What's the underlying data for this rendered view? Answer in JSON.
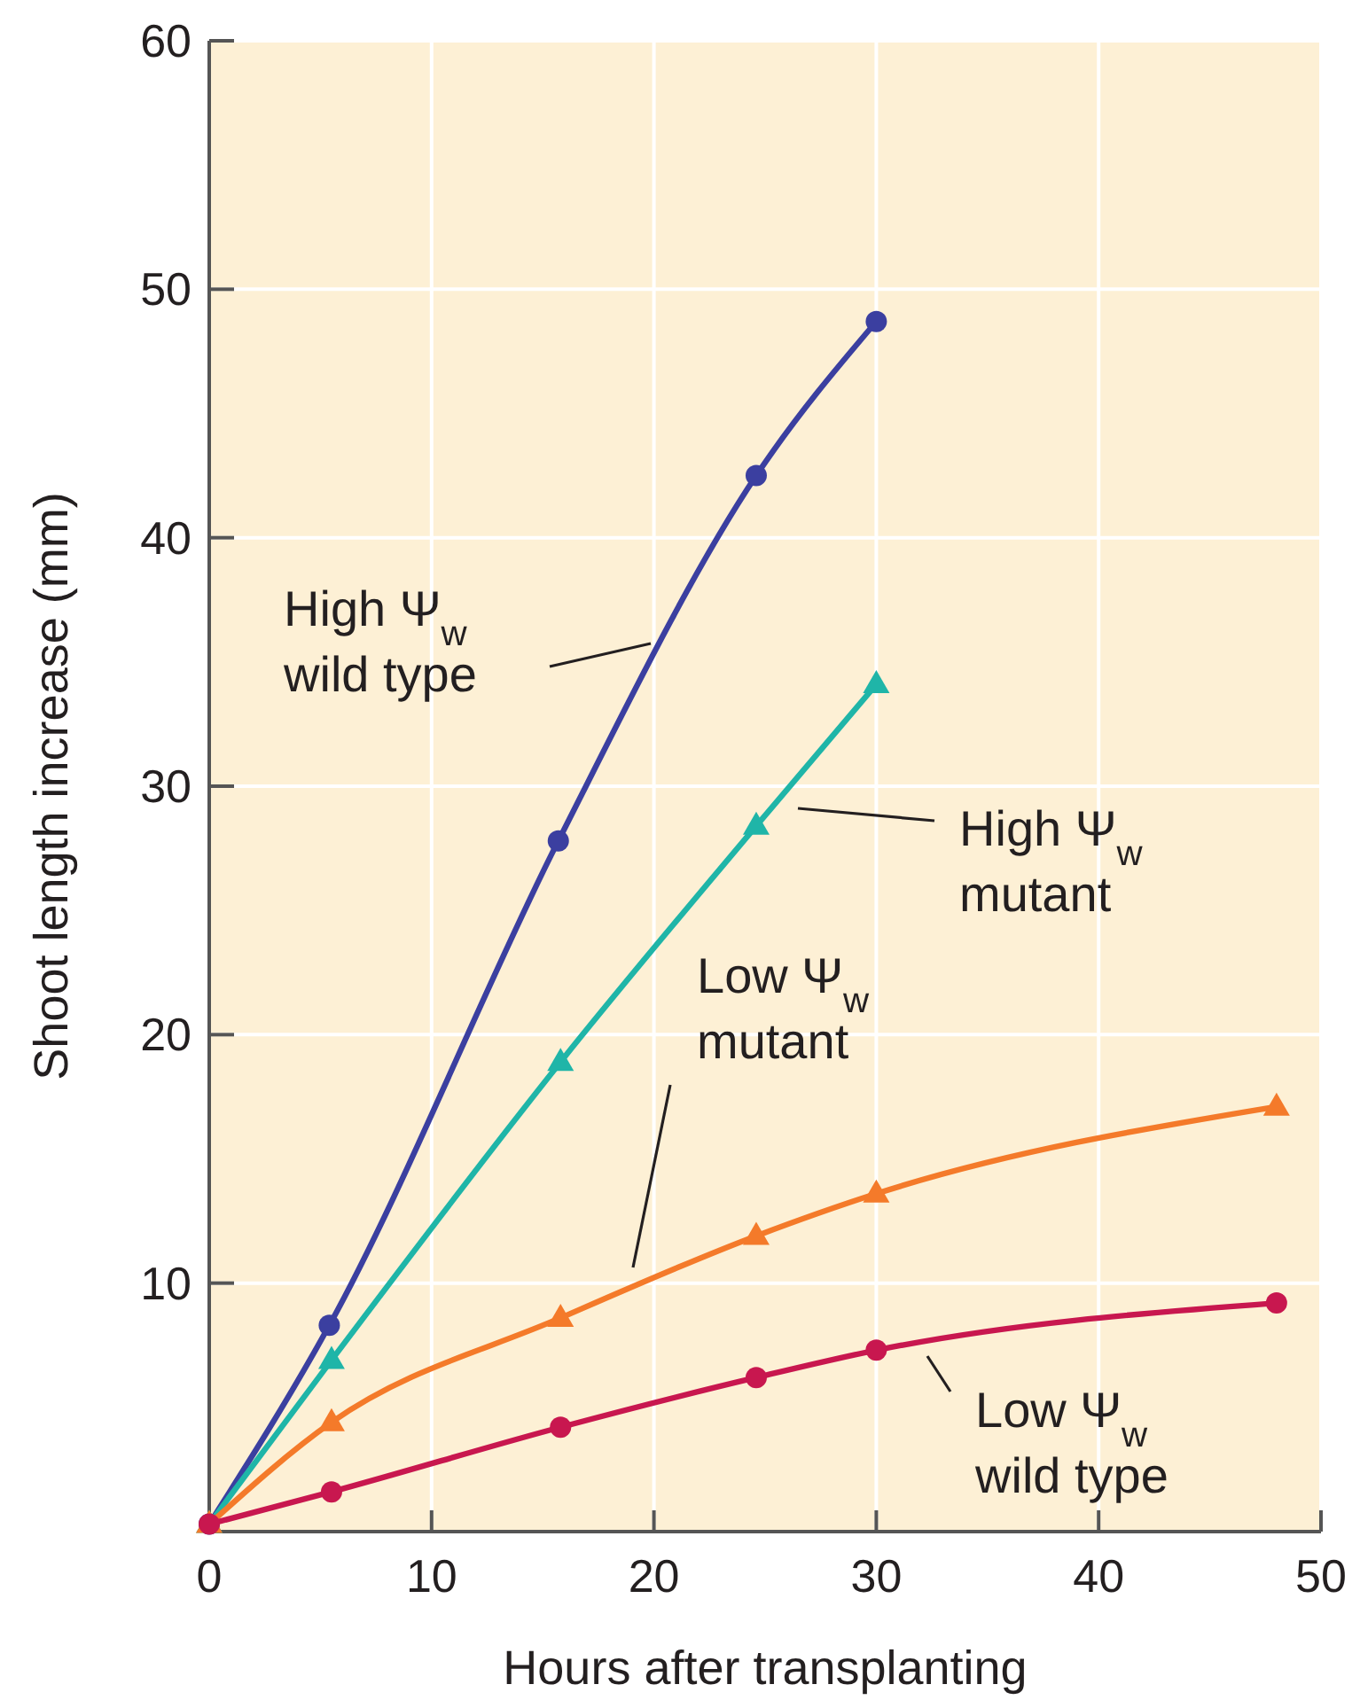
{
  "chart_data": {
    "type": "line",
    "xlabel": "Hours after transplanting",
    "ylabel": "Shoot length increase (mm)",
    "xlim": [
      0,
      50
    ],
    "ylim": [
      0,
      60
    ],
    "xticks": [
      0,
      10,
      20,
      30,
      40,
      50
    ],
    "yticks": [
      10,
      20,
      30,
      40,
      50,
      60
    ],
    "grid": true,
    "line_style": "solid",
    "series": [
      {
        "name": "High Ψ$_{w}$ wild type",
        "color": "#3b3fa0",
        "marker": "circle",
        "x": [
          0,
          5.4,
          15.7,
          24.6,
          30
        ],
        "values": [
          0.3,
          8.3,
          27.8,
          42.5,
          48.7
        ]
      },
      {
        "name": "High Ψ$_{w}$ mutant",
        "color": "#1fb5a8",
        "marker": "triangle",
        "x": [
          0,
          5.5,
          15.8,
          24.6,
          30
        ],
        "values": [
          0.3,
          6.9,
          18.9,
          28.4,
          34.1
        ]
      },
      {
        "name": "Low Ψ$_{w}$ mutant",
        "color": "#f47a2a",
        "marker": "triangle",
        "x": [
          0,
          5.5,
          15.8,
          24.6,
          30,
          48
        ],
        "values": [
          0.3,
          4.4,
          8.6,
          11.9,
          13.6,
          17.1
        ]
      },
      {
        "name": "Low Ψ$_{w}$ wild type",
        "color": "#c8174f",
        "marker": "circle",
        "x": [
          0,
          5.5,
          15.8,
          24.6,
          30,
          48
        ],
        "values": [
          0.3,
          1.6,
          4.2,
          6.2,
          7.3,
          9.2
        ]
      }
    ]
  }
}
